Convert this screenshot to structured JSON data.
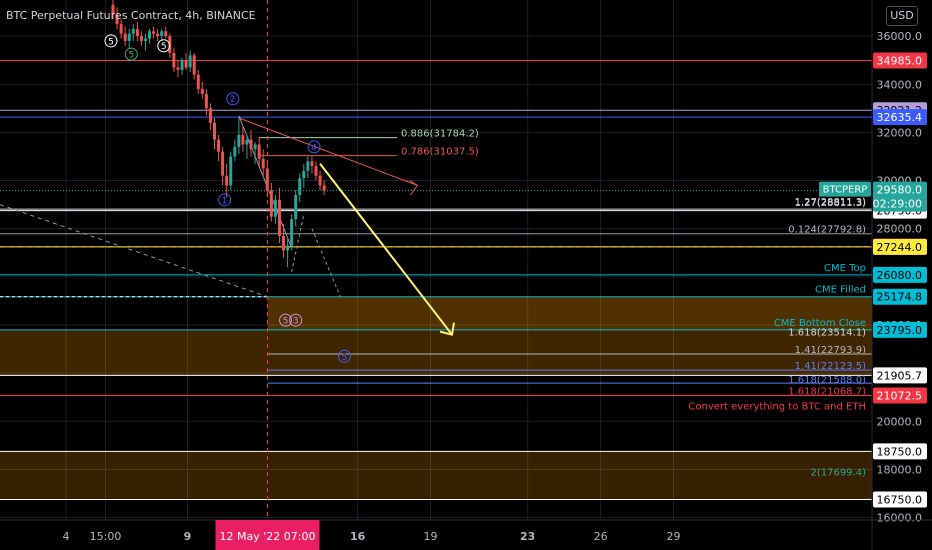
{
  "header": {
    "title": "BTC Perpetual Futures Contract, 4h, BINANCE",
    "currency_button": "USD"
  },
  "colors": {
    "background": "#000000",
    "bull": "#26a69a",
    "bear": "#ef5350",
    "grid": "#1c1f26",
    "axis_text": "#b2b5be"
  },
  "chart_data": {
    "type": "candlestick",
    "title": "BTC Perpetual Futures Contract, 4h, BINANCE",
    "ylim": [
      15900,
      37500
    ],
    "y_ticks": [
      16000,
      18000,
      20000,
      22000,
      24000,
      26000,
      28000,
      30000,
      32000,
      34000,
      36000
    ],
    "x_ticks": [
      {
        "label": "4",
        "date": "2022-05-04"
      },
      {
        "label": "15:00",
        "date": "2022-05-05T15:00"
      },
      {
        "label": "9",
        "date": "2022-05-09"
      },
      {
        "label": "16",
        "date": "2022-05-16"
      },
      {
        "label": "19",
        "date": "2022-05-19"
      },
      {
        "label": "23",
        "date": "2022-05-23"
      },
      {
        "label": "26",
        "date": "2022-05-26"
      },
      {
        "label": "29",
        "date": "2022-05-29"
      }
    ],
    "crosshair": {
      "date": "2022-05-12T07:00",
      "label": "12 May '22   07:00"
    },
    "candles_ohlc": [
      [
        37300,
        37500,
        36700,
        36900
      ],
      [
        36900,
        37200,
        36300,
        36500
      ],
      [
        36500,
        36700,
        35900,
        36100
      ],
      [
        36100,
        36400,
        35600,
        35800
      ],
      [
        35800,
        36300,
        35500,
        36100
      ],
      [
        36100,
        36500,
        35800,
        36300
      ],
      [
        36300,
        36600,
        35800,
        36000
      ],
      [
        36000,
        36200,
        35600,
        35800
      ],
      [
        35800,
        36100,
        35400,
        35900
      ],
      [
        35900,
        36300,
        35700,
        36200
      ],
      [
        36200,
        36400,
        35900,
        36100
      ],
      [
        36100,
        36300,
        35800,
        36000
      ],
      [
        36000,
        36300,
        35800,
        36200
      ],
      [
        36200,
        36400,
        35900,
        36000
      ],
      [
        36000,
        36100,
        35100,
        35300
      ],
      [
        35300,
        35500,
        34500,
        34700
      ],
      [
        34700,
        35000,
        34300,
        34600
      ],
      [
        34600,
        35100,
        34400,
        35000
      ],
      [
        35000,
        35300,
        34600,
        34700
      ],
      [
        34700,
        35400,
        34500,
        35200
      ],
      [
        35200,
        35300,
        34200,
        34400
      ],
      [
        34400,
        34600,
        33600,
        33800
      ],
      [
        33800,
        34100,
        33400,
        33600
      ],
      [
        33600,
        33800,
        32700,
        33000
      ],
      [
        33000,
        33200,
        32100,
        32400
      ],
      [
        32400,
        32600,
        31300,
        31700
      ],
      [
        31700,
        31900,
        30800,
        31200
      ],
      [
        31200,
        31400,
        29800,
        30200
      ],
      [
        30200,
        30700,
        29300,
        29800
      ],
      [
        29800,
        31200,
        29600,
        31000
      ],
      [
        31000,
        31700,
        30800,
        31400
      ],
      [
        31400,
        32600,
        31100,
        31900
      ],
      [
        31900,
        32300,
        31200,
        31500
      ],
      [
        31500,
        31900,
        30900,
        31700
      ],
      [
        31700,
        32100,
        31000,
        31300
      ],
      [
        31300,
        31600,
        30700,
        31500
      ],
      [
        31500,
        31800,
        30600,
        30900
      ],
      [
        30900,
        31300,
        30200,
        30500
      ],
      [
        30500,
        30800,
        29300,
        29600
      ],
      [
        29600,
        29900,
        28300,
        28500
      ],
      [
        28500,
        29400,
        28200,
        29200
      ],
      [
        29200,
        29700,
        27400,
        27700
      ],
      [
        27700,
        28200,
        26800,
        27100
      ],
      [
        27100,
        27600,
        26400,
        27300
      ],
      [
        27300,
        28600,
        27100,
        28400
      ],
      [
        28400,
        29600,
        28100,
        29400
      ],
      [
        29400,
        30300,
        29100,
        30100
      ],
      [
        30100,
        30700,
        29700,
        30400
      ],
      [
        30400,
        31000,
        30100,
        30800
      ],
      [
        30800,
        31000,
        30300,
        30600
      ],
      [
        30600,
        30800,
        30000,
        30200
      ],
      [
        30200,
        30400,
        29600,
        29800
      ],
      [
        29800,
        30000,
        29400,
        29580
      ]
    ],
    "levels": [
      {
        "value": 34985.0,
        "color": "#f23645",
        "price_label": "34985.0"
      },
      {
        "value": 32921.2,
        "color": "#b39ddb",
        "price_label": "32921.2"
      },
      {
        "value": 32635.4,
        "color": "#3d5afe",
        "price_label": "32635.4"
      },
      {
        "value": 28811.3,
        "color": "#d1d4dc",
        "label": "1.27(28811.3)"
      },
      {
        "value": 28750.0,
        "color": "#ffffff",
        "price_label": "28750.0"
      },
      {
        "value": 27250.0,
        "color": "#f23645",
        "dashed": true,
        "price_label": "27250.0"
      },
      {
        "value": 27244.0,
        "color": "#ffeb3b",
        "price_label": "27244.0"
      },
      {
        "value": 26080.0,
        "color": "#00bcd4",
        "label": "CME Top",
        "price_label": "26080.0"
      },
      {
        "value": 25174.8,
        "color": "#00bcd4",
        "label": "CME Filled",
        "price_label": "25174.8"
      },
      {
        "value": 23795.0,
        "color": "#00bcd4",
        "label": "CME Bottom Close",
        "price_label": "23795.0"
      },
      {
        "value": 21905.7,
        "color": "#ffffff",
        "price_label": "21905.7"
      },
      {
        "value": 21072.5,
        "color": "#f23645",
        "price_label": "21072.5"
      },
      {
        "value": 18750.0,
        "color": "#ffffff",
        "price_label": "18750.0"
      },
      {
        "value": 16750.0,
        "color": "#ffffff",
        "price_label": "16750.0"
      }
    ],
    "current_price": {
      "symbol": "BTCPERP",
      "price": "29580.0",
      "countdown": "02:29:00",
      "color": "#26a69a"
    },
    "fib_labels": [
      {
        "value": 31784.2,
        "text": "0.886(31784.2)",
        "color": "#a5d6a7"
      },
      {
        "value": 31037.5,
        "text": "0.786(31037.5)",
        "color": "#ef5350"
      },
      {
        "value": 27792.8,
        "text": "0.124(27792.8)",
        "color": "#b2b5be"
      },
      {
        "value": 23514.1,
        "text": "1.618(23514.1)",
        "color": "#d1d4dc"
      },
      {
        "value": 22793.9,
        "text": "1.41(22793.9)",
        "color": "#b2b5be"
      },
      {
        "value": 22123.5,
        "text": "1.41(22123.5)",
        "color": "#5c7cfa"
      },
      {
        "value": 21588.0,
        "text": "1.618(21588.0)",
        "color": "#5c7cfa"
      },
      {
        "value": 21068.7,
        "text": "1.618(21068.7)",
        "color": "#f23645"
      },
      {
        "value": 17699.4,
        "text": "2(17699.4)",
        "color": "#26a69a"
      }
    ],
    "annotation": {
      "text": "Convert everything to BTC and ETH",
      "color": "#f23645"
    },
    "waves": [
      {
        "text": "5",
        "color": "#ffffff",
        "y": 35800,
        "xi": -0.5
      },
      {
        "text": "5",
        "color": "#4caf50",
        "y": 35250,
        "xi": 4.5
      },
      {
        "text": "5",
        "color": "#ffffff",
        "y": 35600,
        "xi": 12.5
      },
      {
        "text": "2",
        "color": "#3d5afe",
        "y": 33400,
        "xi": 29.5
      },
      {
        "text": "1",
        "color": "#3d5afe",
        "y": 29200,
        "xi": 27.5
      },
      {
        "text": "4",
        "color": "#3d5afe",
        "y": 31400,
        "xi": 49.5
      },
      {
        "text": "5",
        "color": "#ce93d8",
        "y": 24200,
        "xi": 42.5
      },
      {
        "text": "3",
        "color": "#ce93d8",
        "y": 24200,
        "xi": 45
      },
      {
        "text": "5",
        "color": "#3d5afe",
        "y": 22700,
        "xi": 57
      }
    ]
  }
}
